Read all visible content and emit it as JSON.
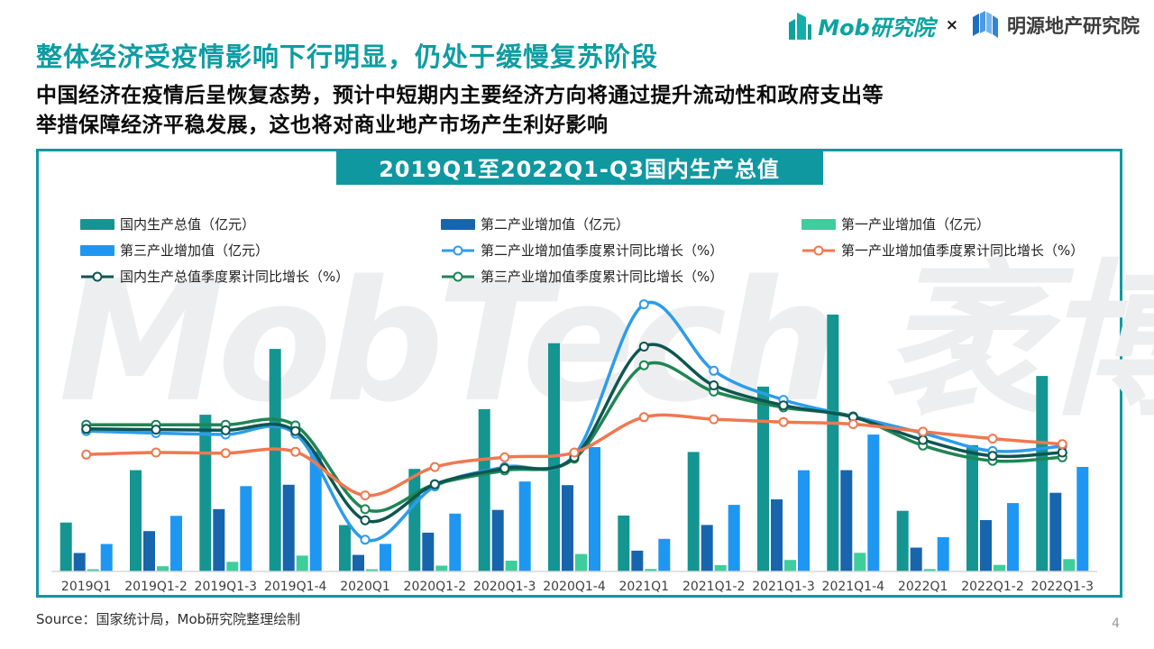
{
  "page": {
    "title": "整体经济受疫情影响下行明显，仍处于缓慢复苏阶段",
    "subtitle_line1": "中国经济在疫情后呈恢复态势，预计中短期内主要经济方向将通过提升流动性和政府支出等",
    "subtitle_line2": "举措保障经济平稳发展，这也将对商业地产市场产生利好影响",
    "source": "Source：国家统计局，Mob研究院整理绘制",
    "page_number": "4",
    "watermark": "MobTech 袤博"
  },
  "logos": {
    "mob_label": "Mob研究院",
    "separator": "×",
    "mingyuan_label": "明源地产研究院"
  },
  "colors": {
    "accent_teal": "#0F98A0",
    "title_teal": "#0D9DA2",
    "watermark_gray": "#ECEEEF"
  },
  "chart": {
    "title": "2019Q1至2022Q1-Q3国内生产总值",
    "legend_columns": [
      [
        {
          "type": "bar",
          "color": "#149591",
          "label": "国内生产总值（亿元）"
        },
        {
          "type": "bar",
          "color": "#1E97F2",
          "label": "第三产业增加值（亿元）"
        },
        {
          "type": "line",
          "color": "#0E5650",
          "label": "国内生产总值季度累计同比增长（%）"
        }
      ],
      [
        {
          "type": "bar",
          "color": "#1765AD",
          "label": "第二产业增加值（亿元）"
        },
        {
          "type": "line",
          "color": "#2D9CEA",
          "label": "第二产业增加值季度累计同比增长（%）"
        },
        {
          "type": "line",
          "color": "#1F8555",
          "label": "第三产业增加值季度累计同比增长（%）"
        }
      ],
      [
        {
          "type": "bar",
          "color": "#3ECD9D",
          "label": "第一产业增加值（亿元）"
        },
        {
          "type": "line",
          "color": "#F07850",
          "label": "第一产业增加值季度累计同比增长（%）"
        }
      ]
    ]
  },
  "chart_data": {
    "type": "bar",
    "subtype": "combo-bar-line",
    "title": "2019Q1至2022Q1-Q3国内生产总值",
    "categories": [
      "2019Q1",
      "2019Q1-2",
      "2019Q1-3",
      "2019Q1-4",
      "2020Q1",
      "2020Q1-2",
      "2020Q1-3",
      "2020Q1-4",
      "2021Q1",
      "2021Q1-2",
      "2021Q1-3",
      "2021Q1-4",
      "2022Q1",
      "2022Q1-2",
      "2022Q1-3"
    ],
    "bar_unit": "亿元",
    "line_unit": "%",
    "bar_series": [
      {
        "id": "gdp",
        "name": "国内生产总值（亿元）",
        "color": "#149591",
        "values": [
          218063,
          450933,
          697798,
          990865,
          206504,
          456614,
          722786,
          1015986,
          249310,
          532167,
          823131,
          1143670,
          270178,
          562642,
          870269
        ]
      },
      {
        "id": "secondary",
        "name": "第二产业增加值（亿元）",
        "color": "#1765AD",
        "values": [
          82346,
          179732,
          277546,
          386165,
          73638,
          172759,
          274267,
          384255,
          92623,
          207154,
          320940,
          450904,
          106187,
          228636,
          350189
        ]
      },
      {
        "id": "primary",
        "name": "第一产业增加值（亿元）",
        "color": "#3ECD9D",
        "values": [
          8769,
          23207,
          43005,
          70467,
          10186,
          26053,
          48123,
          77754,
          11332,
          28402,
          51430,
          83086,
          10954,
          29137,
          54779
        ]
      },
      {
        "id": "tertiary",
        "name": "第三产业增加值（亿元）",
        "color": "#1E97F2",
        "values": [
          122317,
          247743,
          379925,
          534233,
          122680,
          257802,
          400397,
          553977,
          145355,
          296611,
          450761,
          609680,
          153037,
          304621,
          465300
        ]
      }
    ],
    "line_series": [
      {
        "id": "secondary-growth",
        "name": "第二产业增加值季度累计同比增长（%）",
        "color": "#2D9CEA",
        "values": [
          6.1,
          5.8,
          5.6,
          5.7,
          -9.6,
          -1.9,
          0.9,
          2.6,
          24.4,
          14.8,
          10.6,
          8.2,
          5.8,
          3.2,
          3.9
        ]
      },
      {
        "id": "tertiary-growth",
        "name": "第三产业增加值季度累计同比增长（%）",
        "color": "#1F8555",
        "values": [
          7.0,
          7.0,
          7.0,
          6.9,
          -5.2,
          -1.6,
          0.4,
          2.1,
          15.6,
          11.8,
          9.5,
          8.2,
          4.0,
          1.8,
          2.3
        ]
      },
      {
        "id": "gdp-growth",
        "name": "国内生产总值季度累计同比增长（%）",
        "color": "#0E5650",
        "values": [
          6.4,
          6.3,
          6.2,
          6.1,
          -6.8,
          -1.6,
          0.7,
          2.3,
          18.3,
          12.7,
          9.8,
          8.1,
          4.8,
          2.5,
          3.0
        ]
      },
      {
        "id": "primary-growth",
        "name": "第一产业增加值季度累计同比增长（%）",
        "color": "#F07850",
        "values": [
          2.7,
          3.0,
          2.9,
          3.1,
          -3.2,
          0.9,
          2.3,
          3.0,
          8.1,
          7.8,
          7.4,
          7.1,
          6.0,
          5.0,
          4.2
        ]
      }
    ],
    "axes": {
      "y_axis_visible": false,
      "gridlines": false,
      "x_axis_line": true
    },
    "legend_position": "top",
    "xlabel": "",
    "ylabel": ""
  }
}
